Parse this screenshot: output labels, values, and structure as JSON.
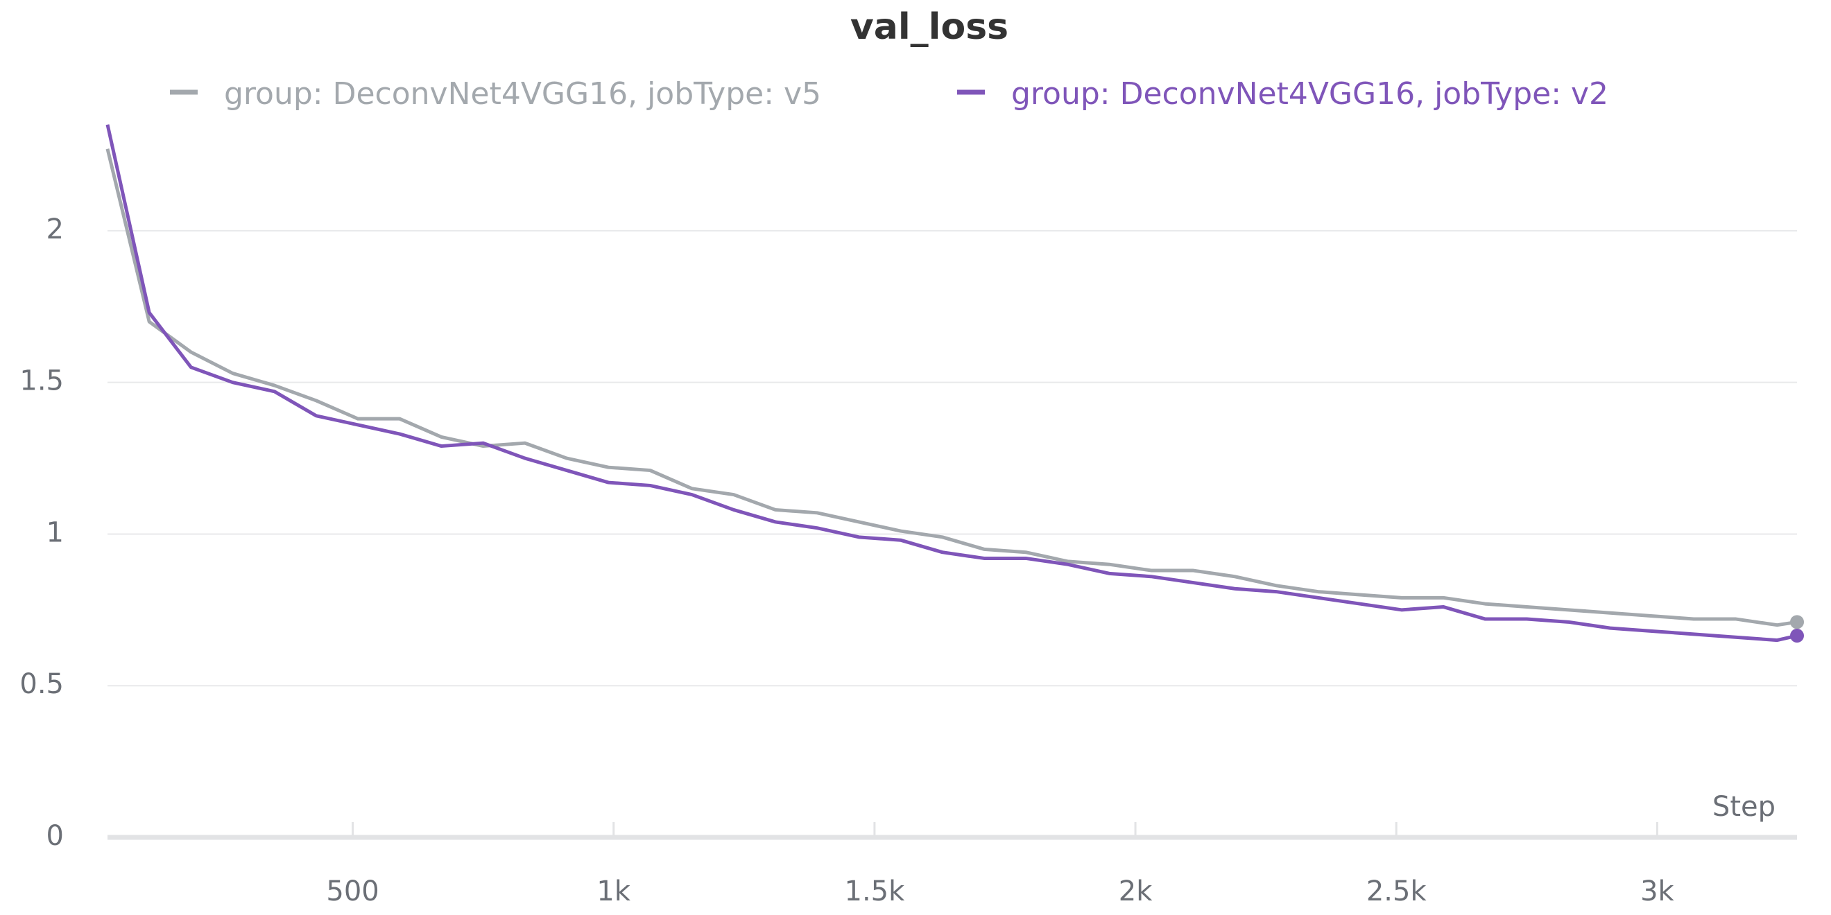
{
  "chart_data": {
    "type": "line",
    "title": "val_loss",
    "x_label": "Step",
    "x": [
      30,
      110,
      190,
      270,
      350,
      430,
      510,
      590,
      670,
      750,
      830,
      910,
      990,
      1070,
      1150,
      1230,
      1310,
      1390,
      1470,
      1550,
      1630,
      1710,
      1790,
      1870,
      1950,
      2030,
      2110,
      2190,
      2270,
      2350,
      2430,
      2510,
      2590,
      2670,
      2750,
      2830,
      2910,
      2990,
      3070,
      3150,
      3230,
      3268
    ],
    "series": [
      {
        "name": "group: DeconvNet4VGG16, jobType: v5",
        "color": "#a3a8ad",
        "values": [
          2.27,
          1.7,
          1.6,
          1.53,
          1.49,
          1.44,
          1.38,
          1.38,
          1.32,
          1.29,
          1.3,
          1.25,
          1.22,
          1.21,
          1.15,
          1.13,
          1.08,
          1.07,
          1.04,
          1.01,
          0.99,
          0.95,
          0.94,
          0.91,
          0.9,
          0.88,
          0.88,
          0.86,
          0.83,
          0.81,
          0.8,
          0.79,
          0.79,
          0.77,
          0.76,
          0.75,
          0.74,
          0.73,
          0.72,
          0.72,
          0.7,
          0.71
        ]
      },
      {
        "name": "group: DeconvNet4VGG16, jobType: v2",
        "color": "#7f55b9",
        "values": [
          2.35,
          1.73,
          1.55,
          1.5,
          1.47,
          1.39,
          1.36,
          1.33,
          1.29,
          1.3,
          1.25,
          1.21,
          1.17,
          1.16,
          1.13,
          1.08,
          1.04,
          1.02,
          0.99,
          0.98,
          0.94,
          0.92,
          0.92,
          0.9,
          0.87,
          0.86,
          0.84,
          0.82,
          0.81,
          0.79,
          0.77,
          0.75,
          0.76,
          0.72,
          0.72,
          0.71,
          0.69,
          0.68,
          0.67,
          0.66,
          0.65,
          0.665
        ]
      }
    ],
    "xlim": [
      30,
      3268
    ],
    "xticks": [
      500,
      {
        "value": 1000,
        "label": "1k"
      },
      {
        "value": 1500,
        "label": "1.5k"
      },
      {
        "value": 2000,
        "label": "2k"
      },
      {
        "value": 2500,
        "label": "2.5k"
      },
      {
        "value": 3000,
        "label": "3k"
      }
    ],
    "ylim": [
      0,
      2.37
    ],
    "yticks": [
      0,
      0.5,
      1,
      1.5,
      2
    ],
    "grid": true
  }
}
